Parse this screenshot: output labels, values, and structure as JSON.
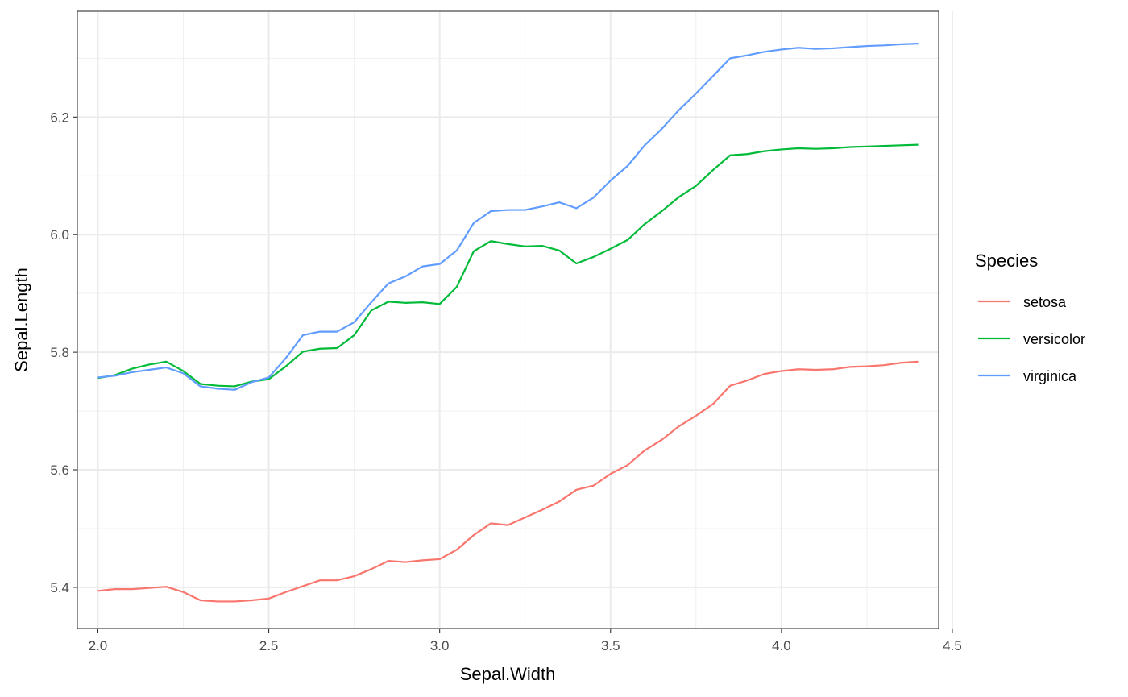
{
  "chart_data": {
    "type": "line",
    "xlabel": "Sepal.Width",
    "ylabel": "Sepal.Length",
    "xlim": [
      1.94,
      4.46
    ],
    "ylim": [
      5.33,
      6.38
    ],
    "x_ticks": [
      2.0,
      2.5,
      3.0,
      3.5,
      4.0,
      4.5
    ],
    "x_tick_labels": [
      "2.0",
      "2.5",
      "3.0",
      "3.5",
      "4.0",
      "4.5"
    ],
    "y_ticks": [
      5.4,
      5.6,
      5.8,
      6.0,
      6.2
    ],
    "y_tick_labels": [
      "5.4",
      "5.6",
      "5.8",
      "6.0",
      "6.2"
    ],
    "grid": true,
    "legend_title": "Species",
    "legend_position": "right",
    "series": [
      {
        "name": "setosa",
        "color": "#F8766D",
        "x": [
          2.0,
          2.05,
          2.1,
          2.15,
          2.2,
          2.25,
          2.3,
          2.35,
          2.4,
          2.45,
          2.5,
          2.55,
          2.6,
          2.65,
          2.7,
          2.75,
          2.8,
          2.85,
          2.9,
          2.95,
          3.0,
          3.05,
          3.1,
          3.15,
          3.2,
          3.25,
          3.3,
          3.35,
          3.4,
          3.45,
          3.5,
          3.55,
          3.6,
          3.65,
          3.7,
          3.75,
          3.8,
          3.85,
          3.9,
          3.95,
          4.0,
          4.05,
          4.1,
          4.15,
          4.2,
          4.25,
          4.3,
          4.35,
          4.4
        ],
        "y": [
          5.394,
          5.397,
          5.397,
          5.399,
          5.401,
          5.392,
          5.378,
          5.376,
          5.376,
          5.378,
          5.381,
          5.392,
          5.402,
          5.412,
          5.412,
          5.419,
          5.431,
          5.445,
          5.443,
          5.446,
          5.448,
          5.464,
          5.489,
          5.509,
          5.506,
          5.519,
          5.532,
          5.546,
          5.566,
          5.573,
          5.593,
          5.608,
          5.633,
          5.651,
          5.674,
          5.692,
          5.712,
          5.743,
          5.752,
          5.763,
          5.768,
          5.771,
          5.77,
          5.771,
          5.775,
          5.776,
          5.778,
          5.782,
          5.784
        ]
      },
      {
        "name": "versicolor",
        "color": "#00BA38",
        "x": [
          2.0,
          2.05,
          2.1,
          2.15,
          2.2,
          2.25,
          2.3,
          2.35,
          2.4,
          2.45,
          2.5,
          2.55,
          2.6,
          2.65,
          2.7,
          2.75,
          2.8,
          2.85,
          2.9,
          2.95,
          3.0,
          3.05,
          3.1,
          3.15,
          3.2,
          3.25,
          3.3,
          3.35,
          3.4,
          3.45,
          3.5,
          3.55,
          3.6,
          3.65,
          3.7,
          3.75,
          3.8,
          3.85,
          3.9,
          3.95,
          4.0,
          4.05,
          4.1,
          4.15,
          4.2,
          4.25,
          4.3,
          4.35,
          4.4
        ],
        "y": [
          5.756,
          5.761,
          5.772,
          5.779,
          5.784,
          5.768,
          5.746,
          5.743,
          5.742,
          5.75,
          5.754,
          5.776,
          5.801,
          5.806,
          5.807,
          5.829,
          5.871,
          5.886,
          5.884,
          5.885,
          5.882,
          5.911,
          5.972,
          5.989,
          5.984,
          5.98,
          5.981,
          5.973,
          5.951,
          5.962,
          5.976,
          5.991,
          6.018,
          6.04,
          6.064,
          6.083,
          6.11,
          6.135,
          6.137,
          6.142,
          6.145,
          6.147,
          6.146,
          6.147,
          6.149,
          6.15,
          6.151,
          6.152,
          6.153
        ]
      },
      {
        "name": "virginica",
        "color": "#619CFF",
        "x": [
          2.0,
          2.05,
          2.1,
          2.15,
          2.2,
          2.25,
          2.3,
          2.35,
          2.4,
          2.45,
          2.5,
          2.55,
          2.6,
          2.65,
          2.7,
          2.75,
          2.8,
          2.85,
          2.9,
          2.95,
          3.0,
          3.05,
          3.1,
          3.15,
          3.2,
          3.25,
          3.3,
          3.35,
          3.4,
          3.45,
          3.5,
          3.55,
          3.6,
          3.65,
          3.7,
          3.75,
          3.8,
          3.85,
          3.9,
          3.95,
          4.0,
          4.05,
          4.1,
          4.15,
          4.2,
          4.25,
          4.3,
          4.35,
          4.4
        ],
        "y": [
          5.757,
          5.76,
          5.766,
          5.77,
          5.774,
          5.764,
          5.742,
          5.738,
          5.736,
          5.749,
          5.757,
          5.79,
          5.829,
          5.835,
          5.835,
          5.851,
          5.885,
          5.917,
          5.929,
          5.946,
          5.95,
          5.973,
          6.02,
          6.04,
          6.042,
          6.042,
          6.048,
          6.055,
          6.045,
          6.063,
          6.092,
          6.117,
          6.152,
          6.18,
          6.212,
          6.24,
          6.27,
          6.3,
          6.305,
          6.311,
          6.315,
          6.318,
          6.316,
          6.317,
          6.319,
          6.321,
          6.322,
          6.324,
          6.325
        ]
      }
    ]
  }
}
